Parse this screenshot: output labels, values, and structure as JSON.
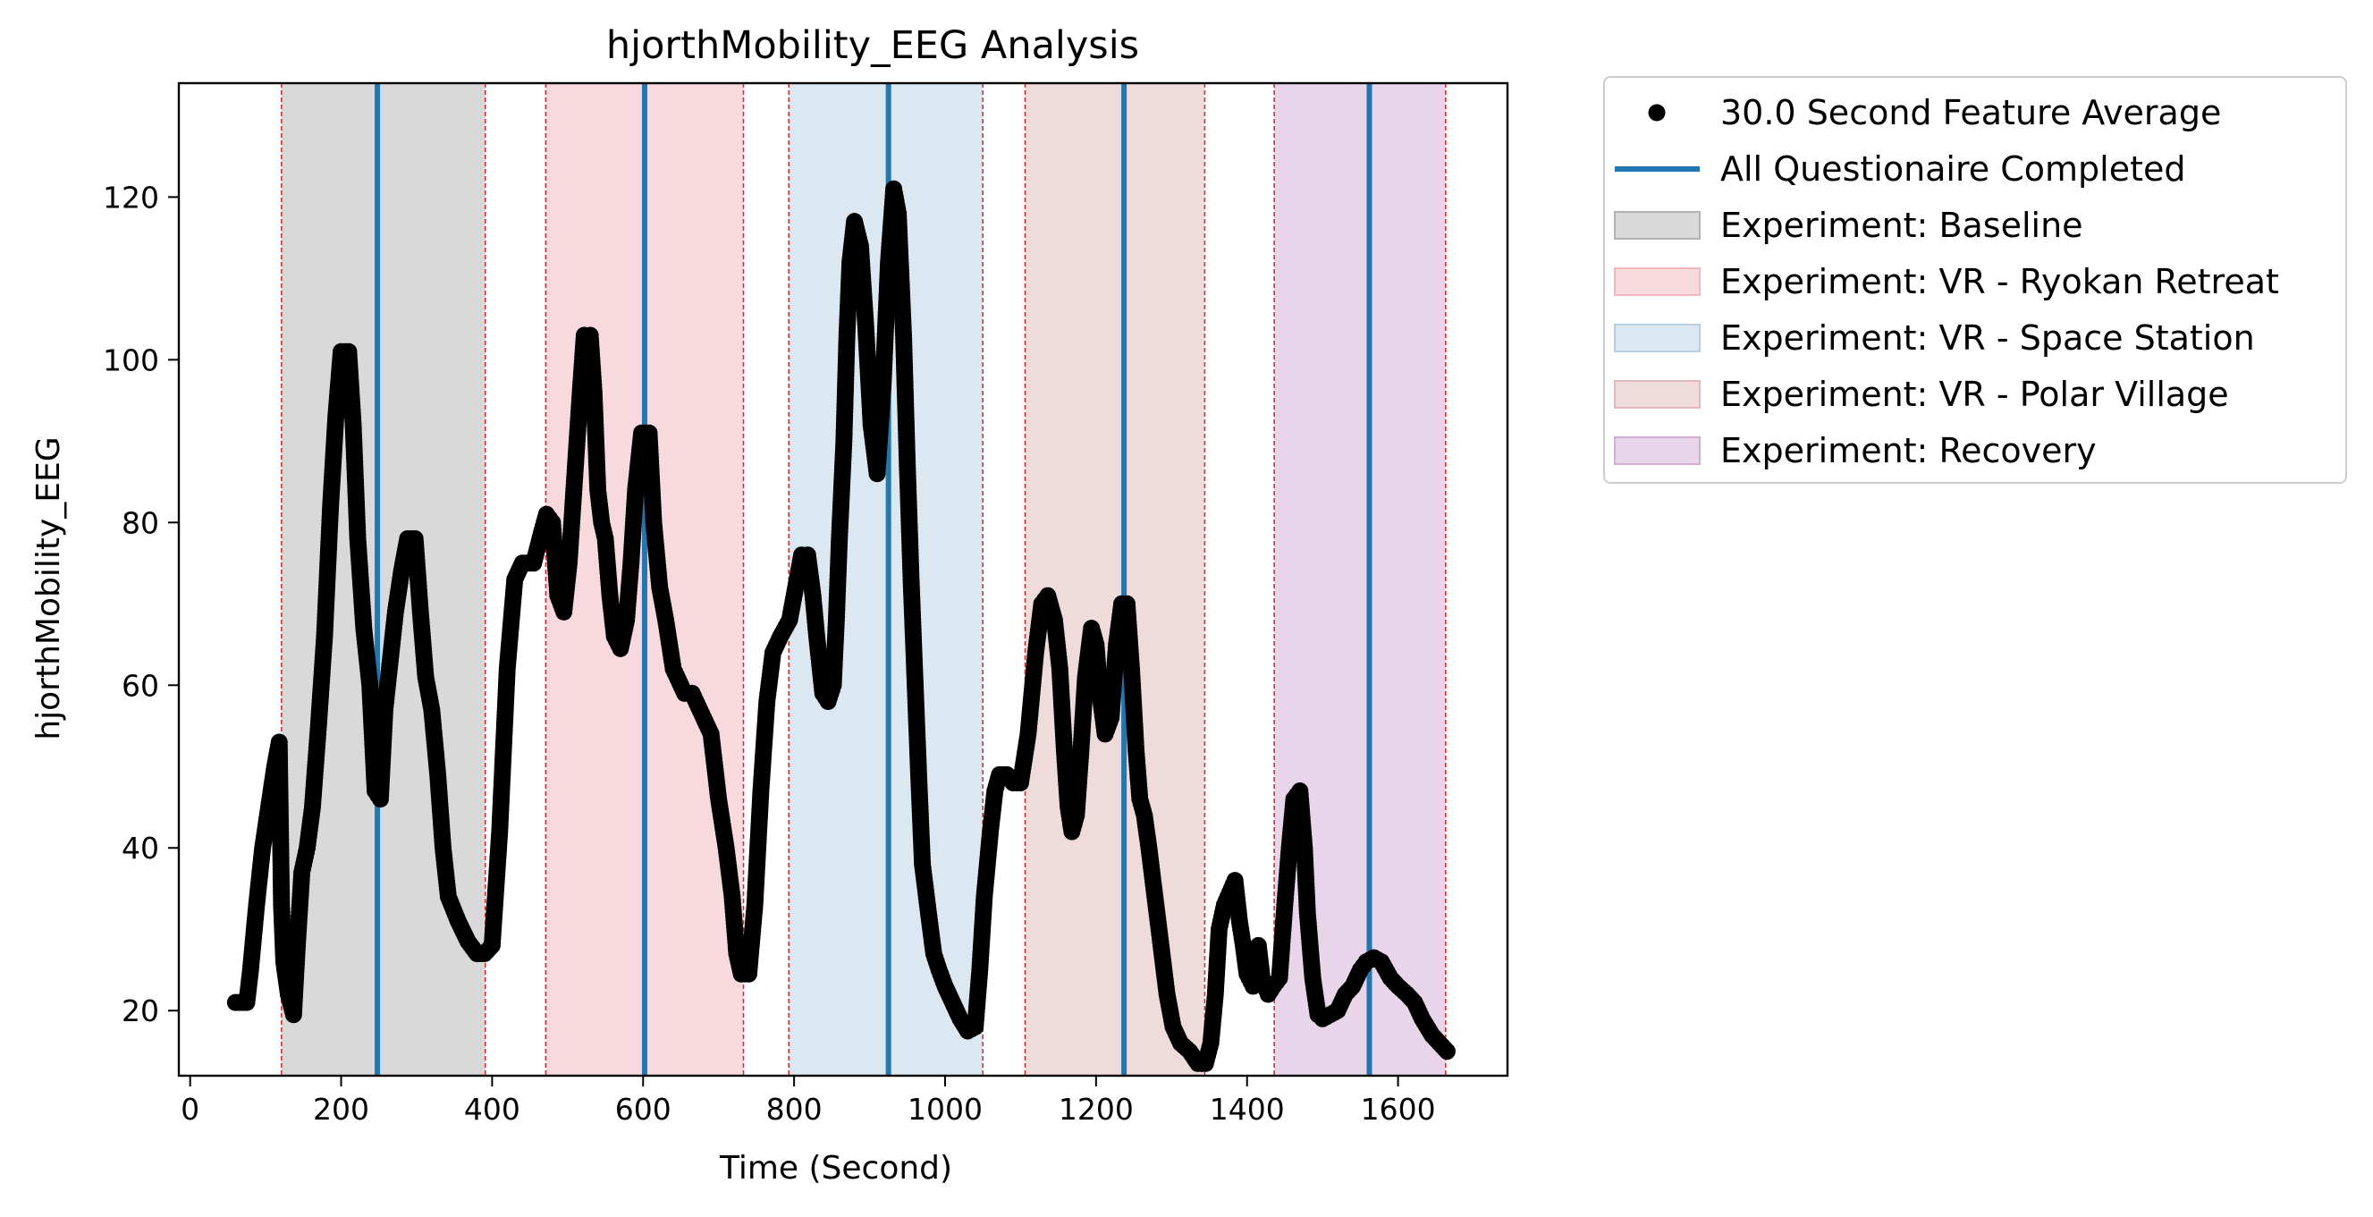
{
  "chart_data": {
    "type": "scatter",
    "title": "hjorthMobility_EEG Analysis",
    "xlabel": "Time (Second)",
    "ylabel": "hjorthMobility_EEG",
    "xlim": [
      -15,
      1745
    ],
    "ylim": [
      12,
      134
    ],
    "xticks": [
      0,
      200,
      400,
      600,
      800,
      1000,
      1200,
      1400,
      1600
    ],
    "yticks": [
      20,
      40,
      60,
      80,
      100,
      120
    ],
    "grid": false,
    "legend_position": "outside-top-right",
    "legend": {
      "items": [
        {
          "label": "30.0 Second Feature Average",
          "kind": "marker",
          "color": "#000000"
        },
        {
          "label": "All Questionaire Completed",
          "kind": "line",
          "color": "#1f77b4"
        },
        {
          "label": "Experiment: Baseline",
          "kind": "patch",
          "color": "#b3b3b3"
        },
        {
          "label": "Experiment: VR - Ryokan Retreat",
          "kind": "patch",
          "color": "#f2b6bd"
        },
        {
          "label": "Experiment: VR - Space Station",
          "kind": "patch",
          "color": "#b7cfe4"
        },
        {
          "label": "Experiment: VR - Polar Village",
          "kind": "patch",
          "color": "#e2b8b8"
        },
        {
          "label": "Experiment: Recovery",
          "kind": "patch",
          "color": "#d3acd6"
        }
      ]
    },
    "regions": [
      {
        "name": "Experiment: Baseline",
        "start": 121,
        "end": 391,
        "color": "#b3b3b3"
      },
      {
        "name": "Experiment: VR - Ryokan Retreat",
        "start": 471,
        "end": 733,
        "color": "#f2b6bd"
      },
      {
        "name": "Experiment: VR - Space Station",
        "start": 793,
        "end": 1050,
        "color": "#b7cfe4"
      },
      {
        "name": "Experiment: VR - Polar Village",
        "start": 1106,
        "end": 1344,
        "color": "#e2b8b8"
      },
      {
        "name": "Experiment: Recovery",
        "start": 1436,
        "end": 1663,
        "color": "#d3acd6"
      }
    ],
    "questionnaire_lines": [
      248,
      602,
      925,
      1237,
      1562
    ],
    "series": [
      {
        "name": "30.0 Second Feature Average",
        "color": "#000000",
        "points": [
          [
            60,
            21
          ],
          [
            75,
            21
          ],
          [
            80,
            25
          ],
          [
            88,
            33
          ],
          [
            96,
            40
          ],
          [
            104,
            45
          ],
          [
            112,
            50
          ],
          [
            118,
            53
          ],
          [
            121,
            33
          ],
          [
            124,
            26
          ],
          [
            130,
            22
          ],
          [
            137,
            19.5
          ],
          [
            142,
            28
          ],
          [
            148,
            37
          ],
          [
            155,
            40
          ],
          [
            162,
            45
          ],
          [
            170,
            55
          ],
          [
            178,
            66
          ],
          [
            186,
            82
          ],
          [
            193,
            93
          ],
          [
            200,
            101
          ],
          [
            210,
            101
          ],
          [
            216,
            92
          ],
          [
            222,
            78
          ],
          [
            230,
            67
          ],
          [
            238,
            60
          ],
          [
            245,
            47
          ],
          [
            252,
            46
          ],
          [
            258,
            57
          ],
          [
            265,
            63
          ],
          [
            272,
            69
          ],
          [
            280,
            74
          ],
          [
            288,
            78
          ],
          [
            298,
            78
          ],
          [
            305,
            69
          ],
          [
            312,
            61
          ],
          [
            320,
            57
          ],
          [
            328,
            49
          ],
          [
            335,
            40
          ],
          [
            342,
            34
          ],
          [
            355,
            31
          ],
          [
            368,
            28.5
          ],
          [
            380,
            27
          ],
          [
            390,
            27
          ],
          [
            400,
            28
          ],
          [
            410,
            42
          ],
          [
            420,
            62
          ],
          [
            430,
            73
          ],
          [
            440,
            75
          ],
          [
            455,
            75
          ],
          [
            466,
            79
          ],
          [
            472,
            81
          ],
          [
            480,
            80
          ],
          [
            487,
            71
          ],
          [
            495,
            69
          ],
          [
            502,
            75
          ],
          [
            509,
            85
          ],
          [
            516,
            95
          ],
          [
            522,
            103
          ],
          [
            530,
            103
          ],
          [
            535,
            96
          ],
          [
            540,
            84
          ],
          [
            545,
            80
          ],
          [
            550,
            78
          ],
          [
            556,
            71
          ],
          [
            562,
            66
          ],
          [
            570,
            64.5
          ],
          [
            578,
            68
          ],
          [
            584,
            75
          ],
          [
            590,
            84
          ],
          [
            598,
            91
          ],
          [
            608,
            91
          ],
          [
            614,
            80
          ],
          [
            622,
            72
          ],
          [
            630,
            68
          ],
          [
            640,
            62
          ],
          [
            655,
            59
          ],
          [
            665,
            59
          ],
          [
            680,
            56
          ],
          [
            690,
            54
          ],
          [
            700,
            46
          ],
          [
            710,
            40
          ],
          [
            718,
            34
          ],
          [
            724,
            27
          ],
          [
            730,
            24.5
          ],
          [
            740,
            24.5
          ],
          [
            748,
            33
          ],
          [
            756,
            47
          ],
          [
            764,
            58
          ],
          [
            772,
            64
          ],
          [
            782,
            66
          ],
          [
            794,
            68
          ],
          [
            802,
            72
          ],
          [
            810,
            76
          ],
          [
            818,
            76
          ],
          [
            825,
            71
          ],
          [
            830,
            66
          ],
          [
            838,
            59
          ],
          [
            845,
            58
          ],
          [
            852,
            60
          ],
          [
            856,
            68
          ],
          [
            860,
            78
          ],
          [
            866,
            90
          ],
          [
            870,
            103
          ],
          [
            874,
            112
          ],
          [
            880,
            117
          ],
          [
            888,
            114
          ],
          [
            895,
            104
          ],
          [
            902,
            92
          ],
          [
            910,
            86
          ],
          [
            918,
            97
          ],
          [
            925,
            112
          ],
          [
            932,
            121
          ],
          [
            938,
            118
          ],
          [
            945,
            103
          ],
          [
            950,
            87
          ],
          [
            955,
            73
          ],
          [
            960,
            61
          ],
          [
            965,
            49
          ],
          [
            970,
            38
          ],
          [
            978,
            32
          ],
          [
            985,
            27
          ],
          [
            992,
            25
          ],
          [
            1000,
            23
          ],
          [
            1010,
            21
          ],
          [
            1020,
            19
          ],
          [
            1030,
            17.5
          ],
          [
            1040,
            18
          ],
          [
            1046,
            25
          ],
          [
            1052,
            34
          ],
          [
            1060,
            42
          ],
          [
            1066,
            47
          ],
          [
            1072,
            49
          ],
          [
            1082,
            49
          ],
          [
            1090,
            48
          ],
          [
            1100,
            48
          ],
          [
            1110,
            54
          ],
          [
            1120,
            64
          ],
          [
            1128,
            70
          ],
          [
            1136,
            71
          ],
          [
            1145,
            68
          ],
          [
            1152,
            62
          ],
          [
            1158,
            52
          ],
          [
            1163,
            45
          ],
          [
            1168,
            42
          ],
          [
            1174,
            44
          ],
          [
            1180,
            52
          ],
          [
            1186,
            61
          ],
          [
            1194,
            67
          ],
          [
            1200,
            65
          ],
          [
            1205,
            59
          ],
          [
            1212,
            54
          ],
          [
            1220,
            56
          ],
          [
            1227,
            65
          ],
          [
            1234,
            70
          ],
          [
            1241,
            70
          ],
          [
            1247,
            62
          ],
          [
            1253,
            52
          ],
          [
            1258,
            46
          ],
          [
            1264,
            44
          ],
          [
            1270,
            40
          ],
          [
            1278,
            34
          ],
          [
            1286,
            28
          ],
          [
            1294,
            22
          ],
          [
            1302,
            18
          ],
          [
            1312,
            16
          ],
          [
            1324,
            15
          ],
          [
            1335,
            13.5
          ],
          [
            1345,
            13.5
          ],
          [
            1352,
            16
          ],
          [
            1358,
            22
          ],
          [
            1363,
            30
          ],
          [
            1370,
            33
          ],
          [
            1377,
            34.5
          ],
          [
            1384,
            36
          ],
          [
            1390,
            31
          ],
          [
            1395,
            28
          ],
          [
            1400,
            24.5
          ],
          [
            1408,
            23
          ],
          [
            1415,
            28
          ],
          [
            1420,
            24
          ],
          [
            1428,
            22
          ],
          [
            1435,
            23
          ],
          [
            1443,
            24
          ],
          [
            1450,
            33
          ],
          [
            1456,
            40
          ],
          [
            1462,
            46
          ],
          [
            1470,
            47
          ],
          [
            1476,
            40
          ],
          [
            1480,
            32
          ],
          [
            1487,
            24
          ],
          [
            1494,
            19.5
          ],
          [
            1500,
            19
          ],
          [
            1510,
            19.5
          ],
          [
            1520,
            20
          ],
          [
            1530,
            22
          ],
          [
            1540,
            23
          ],
          [
            1550,
            25
          ],
          [
            1558,
            26
          ],
          [
            1568,
            26.5
          ],
          [
            1578,
            26
          ],
          [
            1590,
            24
          ],
          [
            1600,
            23
          ],
          [
            1612,
            22
          ],
          [
            1622,
            21
          ],
          [
            1632,
            19
          ],
          [
            1645,
            17
          ],
          [
            1655,
            16
          ],
          [
            1665,
            15
          ]
        ]
      }
    ]
  }
}
